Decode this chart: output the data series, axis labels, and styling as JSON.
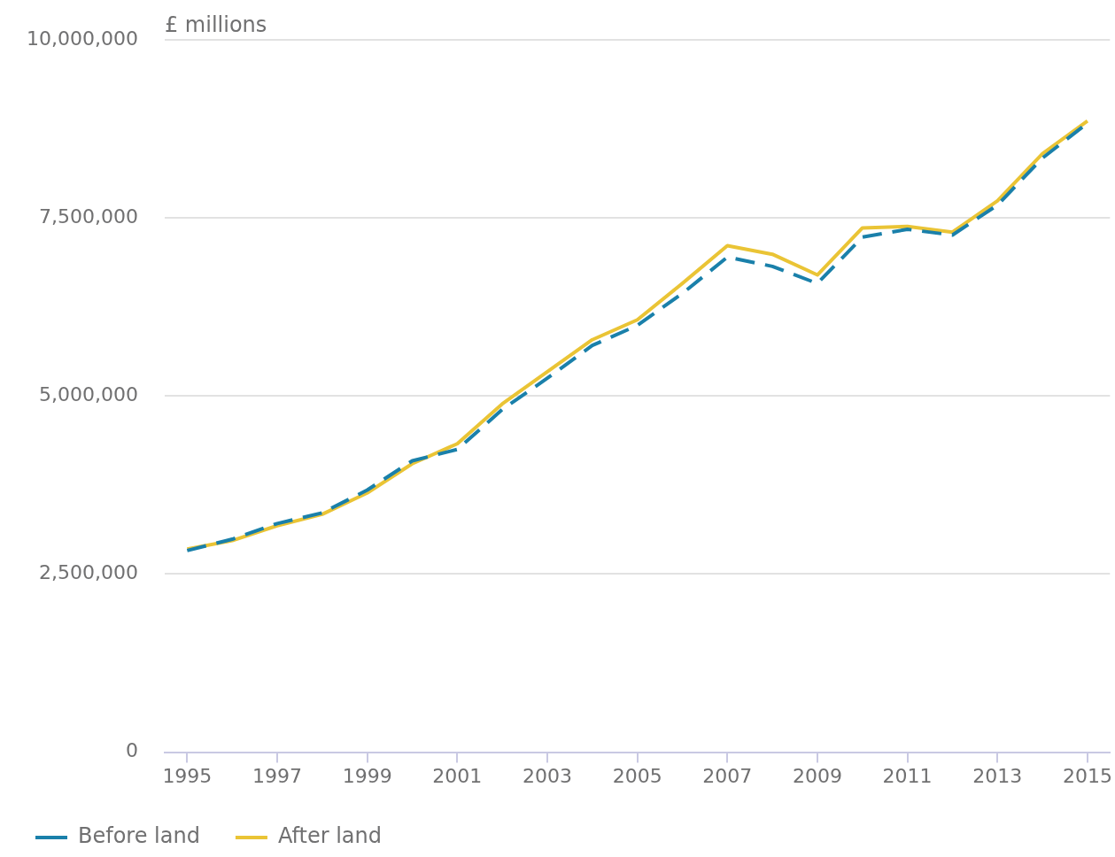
{
  "chart_data": {
    "type": "line",
    "ylabel": "£ millions",
    "x": [
      1995,
      1996,
      1997,
      1998,
      1999,
      2000,
      2001,
      2002,
      2003,
      2004,
      2005,
      2006,
      2007,
      2008,
      2009,
      2010,
      2011,
      2012,
      2013,
      2014,
      2015
    ],
    "series": [
      {
        "name": "Before land",
        "color": "#1a80aa",
        "line_style": "dashed",
        "values": [
          2830000,
          2990000,
          3210000,
          3360000,
          3680000,
          4090000,
          4250000,
          4810000,
          5250000,
          5710000,
          5990000,
          6440000,
          6950000,
          6820000,
          6580000,
          7230000,
          7340000,
          7260000,
          7680000,
          8340000,
          8830000
        ]
      },
      {
        "name": "After land",
        "color": "#eac435",
        "line_style": "solid",
        "values": [
          2850000,
          2970000,
          3180000,
          3340000,
          3640000,
          4050000,
          4330000,
          4890000,
          5340000,
          5790000,
          6070000,
          6580000,
          7110000,
          6990000,
          6700000,
          7360000,
          7380000,
          7300000,
          7740000,
          8400000,
          8860000
        ]
      }
    ],
    "xlim": [
      1994.5,
      2015.5
    ],
    "xticks": [
      1995,
      1997,
      1999,
      2001,
      2003,
      2005,
      2007,
      2009,
      2011,
      2013,
      2015
    ],
    "ylim": [
      0,
      10000000
    ],
    "yticks": [
      0,
      {
        "value": 2500000,
        "label": "2,500,000"
      },
      {
        "value": 5000000,
        "label": "5,000,000"
      },
      {
        "value": 7500000,
        "label": "7,500,000"
      },
      {
        "value": 10000000,
        "label": "10,000,000"
      }
    ],
    "grid": "y",
    "legend": "bottom left",
    "marker": "none"
  }
}
